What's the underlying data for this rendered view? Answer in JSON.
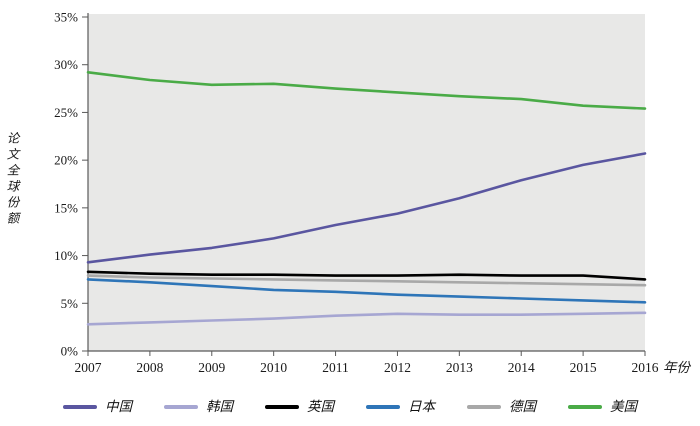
{
  "chart_data": {
    "type": "line",
    "x": [
      2007,
      2008,
      2009,
      2010,
      2011,
      2012,
      2013,
      2014,
      2015,
      2016
    ],
    "series": [
      {
        "name": "中国",
        "color": "#5a56a0",
        "values": [
          9.3,
          10.1,
          10.8,
          11.8,
          13.2,
          14.4,
          16.0,
          17.9,
          19.5,
          20.7
        ]
      },
      {
        "name": "韩国",
        "color": "#a6a6d2",
        "values": [
          2.8,
          3.0,
          3.2,
          3.4,
          3.7,
          3.9,
          3.8,
          3.8,
          3.9,
          4.0
        ]
      },
      {
        "name": "英国",
        "color": "#000000",
        "values": [
          8.3,
          8.1,
          8.0,
          8.0,
          7.9,
          7.9,
          8.0,
          7.9,
          7.9,
          7.5
        ]
      },
      {
        "name": "日本",
        "color": "#2e75b8",
        "values": [
          7.5,
          7.2,
          6.8,
          6.4,
          6.2,
          5.9,
          5.7,
          5.5,
          5.3,
          5.1
        ]
      },
      {
        "name": "德国",
        "color": "#a8a8a8",
        "values": [
          7.9,
          7.7,
          7.6,
          7.5,
          7.4,
          7.3,
          7.2,
          7.1,
          7.0,
          6.9
        ]
      },
      {
        "name": "美国",
        "color": "#4aab47",
        "values": [
          29.2,
          28.4,
          27.9,
          28.0,
          27.5,
          27.1,
          26.7,
          26.4,
          25.7,
          25.4
        ]
      }
    ],
    "title": "",
    "ylabel": "论文全球份额",
    "xlabel_suffix": "年份",
    "ylim": [
      0,
      35
    ],
    "ytick_step": 5,
    "ytick_format": "percent",
    "grid": false,
    "legend_position": "bottom",
    "plot_bg_color": "#e8e8e7",
    "axis_color": "#595959"
  }
}
